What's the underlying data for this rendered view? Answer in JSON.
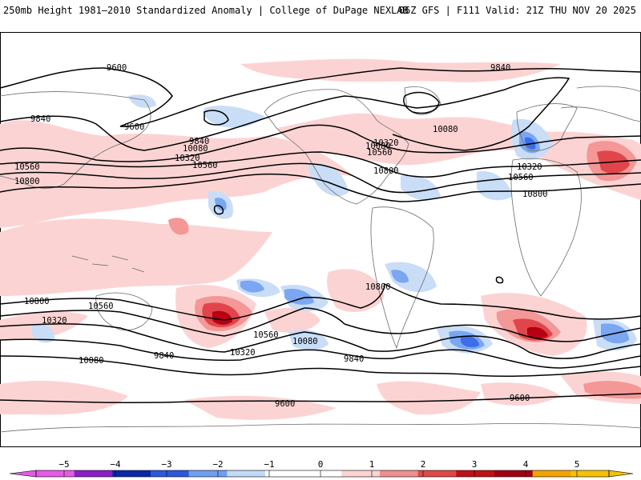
{
  "header": {
    "left_title": "250mb Height 1981–2010 Standardized Anomaly | College of DuPage NEXLAB",
    "right_title": "06Z GFS | F111 Valid: 21Z THU NOV 20 2025"
  },
  "colors": {
    "pos1": "#fcd3d3",
    "pos2": "#f49797",
    "pos3": "#e0454b",
    "pos4": "#b80013",
    "neg1": "#c9ddf7",
    "neg2": "#7aa6f2",
    "neg3": "#3b6ee8",
    "land": "#6b6b6b",
    "contour": "#000000"
  },
  "contour_labels": [
    "9600",
    "9840",
    "10080",
    "10320",
    "10560",
    "10800",
    "9600",
    "9840",
    "10080",
    "10320",
    "10560",
    "10800",
    "10560",
    "9840",
    "10080",
    "10800",
    "10560",
    "10320",
    "10800",
    "10560",
    "10320",
    "10080",
    "9840",
    "9600",
    "10560",
    "10080",
    "10320",
    "10800",
    "9840",
    "9600"
  ],
  "colorbar": {
    "ticks": [
      "−5",
      "−4",
      "−3",
      "−2",
      "−1",
      "0",
      "1",
      "2",
      "3",
      "4",
      "5"
    ],
    "colors": [
      "#e65ae6",
      "#8a1fc8",
      "#0a27a8",
      "#2b58e0",
      "#6f9ff2",
      "#c2daf7",
      "#ffffff",
      "#ffffff",
      "#fcd3d3",
      "#f08f8f",
      "#e04848",
      "#c21016",
      "#a00010",
      "#f5a300",
      "#f5c100"
    ]
  }
}
